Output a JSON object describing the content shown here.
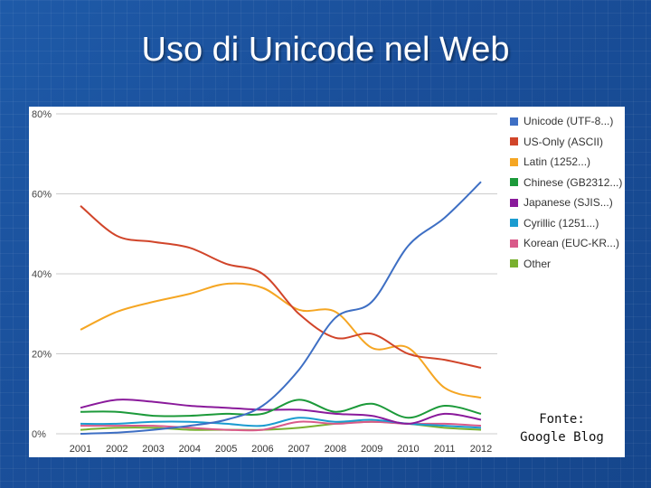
{
  "slide": {
    "title": "Uso di Unicode nel Web",
    "source_line1": "Fonte:",
    "source_line2": "Google Blog"
  },
  "chart_data": {
    "type": "line",
    "title": "",
    "xlabel": "",
    "ylabel": "",
    "x": [
      2001,
      2002,
      2003,
      2004,
      2005,
      2006,
      2007,
      2008,
      2009,
      2010,
      2011,
      2012
    ],
    "x_tick_labels": [
      "2001",
      "2002",
      "2003",
      "2004",
      "2005",
      "2006",
      "2007",
      "2008",
      "2009",
      "2010",
      "2011",
      "2012"
    ],
    "xlim": [
      2001,
      2012
    ],
    "ylim": [
      0,
      80
    ],
    "y_ticks": [
      0,
      20,
      40,
      60,
      80
    ],
    "y_tick_labels": [
      "0%",
      "20%",
      "40%",
      "60%",
      "80%"
    ],
    "grid": true,
    "legend_position": "right",
    "series": [
      {
        "name": "Unicode (UTF-8...)",
        "color": "#3e6fc4",
        "values": [
          0,
          0.3,
          1,
          2,
          3.5,
          7,
          16,
          29,
          33,
          47,
          54,
          63
        ]
      },
      {
        "name": "US-Only (ASCII)",
        "color": "#d1452a",
        "values": [
          57,
          49.5,
          48,
          46.5,
          42.5,
          40,
          30,
          24,
          25,
          20,
          18.5,
          16.5
        ]
      },
      {
        "name": "Latin (1252...)",
        "color": "#f5a623",
        "values": [
          26,
          30.5,
          33,
          35,
          37.5,
          36.5,
          31,
          30.5,
          21.5,
          21.5,
          11.5,
          9
        ]
      },
      {
        "name": "Chinese (GB2312...)",
        "color": "#1c9a3a",
        "values": [
          5.5,
          5.5,
          4.5,
          4.5,
          5,
          5,
          8.5,
          5.5,
          7.5,
          4,
          7,
          5
        ]
      },
      {
        "name": "Japanese (SJIS...)",
        "color": "#8a1a9b",
        "values": [
          6.5,
          8.5,
          8,
          7,
          6.5,
          6,
          6,
          5,
          4.5,
          2.5,
          5,
          3.5
        ]
      },
      {
        "name": "Cyrillic (1251...)",
        "color": "#1b9cd0",
        "values": [
          2.5,
          2.5,
          3,
          3,
          2.5,
          2,
          4,
          3,
          3.5,
          2.5,
          2,
          1.5
        ]
      },
      {
        "name": "Korean (EUC-KR...)",
        "color": "#d95a8a",
        "values": [
          2,
          2,
          2,
          1.5,
          1,
          1,
          3,
          2.5,
          3,
          2.5,
          2.5,
          2
        ]
      },
      {
        "name": "Other",
        "color": "#79b02f",
        "values": [
          1,
          1.5,
          1.5,
          1,
          1,
          1,
          1.5,
          2.5,
          3,
          2.5,
          1.5,
          1
        ]
      }
    ]
  }
}
